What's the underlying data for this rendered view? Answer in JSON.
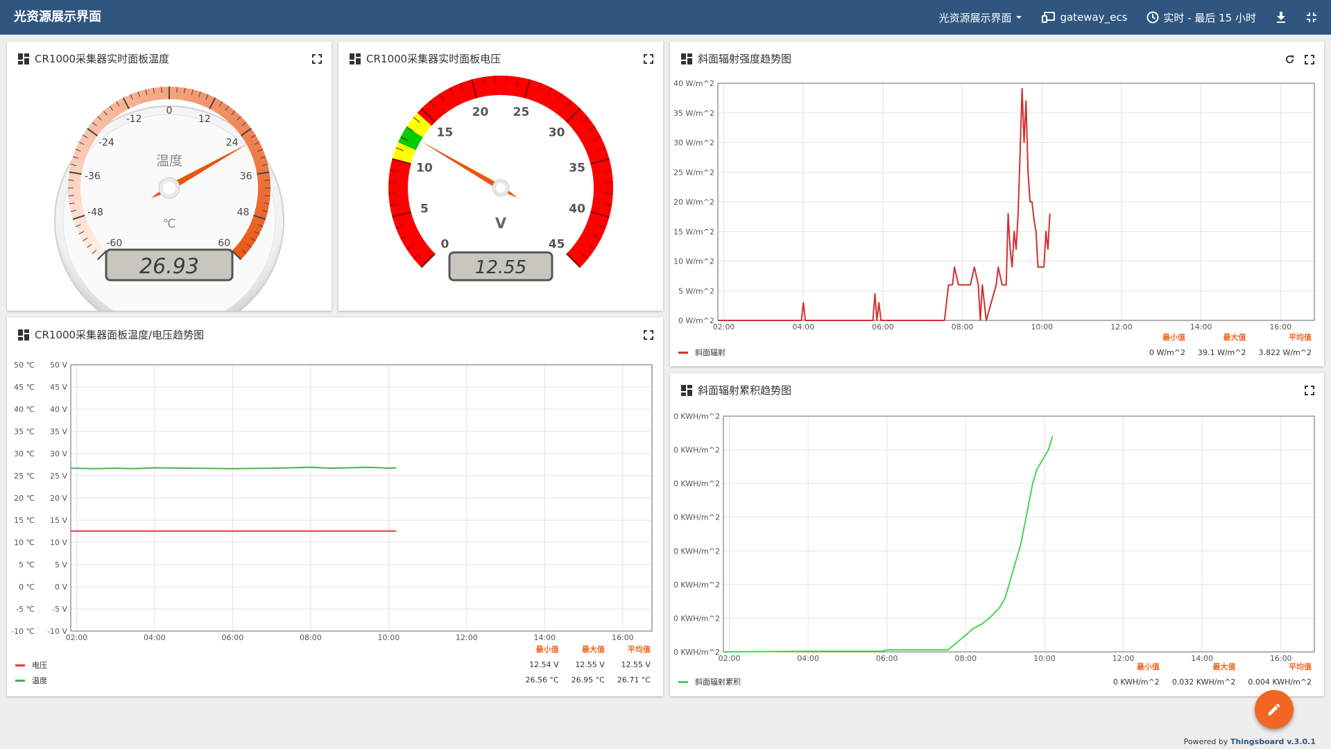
{
  "header": {
    "title": "光资源展示界面",
    "dashboard_select": "光资源展示界面",
    "entity": "gateway_ecs",
    "timewindow": "实时 - 最后 15 小时"
  },
  "colors": {
    "header_bg": "#305680",
    "accent": "#f26522",
    "voltage_series": "#e53935",
    "temp_series": "#4caf50",
    "irradiance_series": "#d32f2f",
    "cumulative_series": "#42d552"
  },
  "widgets": {
    "temp_gauge": {
      "title": "CR1000采集器实时面板温度",
      "label": "温度",
      "unit": "℃",
      "value_text": "26.93",
      "value": 26.93,
      "min": -60,
      "max": 60,
      "ticks": [
        -60,
        -48,
        -36,
        -24,
        -12,
        0,
        12,
        24,
        36,
        48,
        60
      ]
    },
    "volt_gauge": {
      "title": "CR1000采集器实时面板电压",
      "unit": "V",
      "value_text": "12.55",
      "value": 12.55,
      "min": 0,
      "max": 45,
      "ticks": [
        0,
        5,
        10,
        15,
        20,
        25,
        30,
        35,
        40,
        45
      ]
    },
    "temp_volt_chart": {
      "title": "CR1000采集器面板温度/电压趋势图",
      "legend": [
        {
          "name": "电压",
          "min": "12.54 V",
          "max": "12.55 V",
          "avg": "12.55 V"
        },
        {
          "name": "温度",
          "min": "26.56 °C",
          "max": "26.95 °C",
          "avg": "26.71 °C"
        }
      ],
      "stat_headers": [
        "最小值",
        "最大值",
        "平均值"
      ]
    },
    "irr_chart": {
      "title": "斜面辐射强度趋势图",
      "legend": [
        {
          "name": "斜面辐射",
          "min": "0 W/m^2",
          "max": "39.1 W/m^2",
          "avg": "3.822 W/m^2"
        }
      ],
      "stat_headers": [
        "最小值",
        "最大值",
        "平均值"
      ]
    },
    "cum_chart": {
      "title": "斜面辐射累积趋势图",
      "legend": [
        {
          "name": "斜面辐射累积",
          "min": "0 KWH/m^2",
          "max": "0.032 KWH/m^2",
          "avg": "0.004 KWH/m^2"
        }
      ],
      "stat_headers": [
        "最小值",
        "最大值",
        "平均值"
      ]
    }
  },
  "footer": {
    "powered_by": "Powered by ",
    "brand": "Thingsboard v.3.0.1"
  },
  "chart_data": [
    {
      "type": "line",
      "title": "CR1000采集器面板温度/电压趋势图",
      "x_ticks": [
        "02:00",
        "04:00",
        "06:00",
        "08:00",
        "10:00",
        "12:00",
        "14:00",
        "16:00"
      ],
      "xlim": [
        1.85,
        16.75
      ],
      "y_left": {
        "ticks": [
          "50 ℃",
          "45 ℃",
          "40 ℃",
          "35 ℃",
          "30 ℃",
          "25 ℃",
          "20 ℃",
          "15 ℃",
          "10 ℃",
          "5 ℃",
          "0 ℃",
          "-5 ℃",
          "-10 ℃"
        ],
        "ylim": [
          -10,
          50
        ]
      },
      "y_right": {
        "ticks": [
          "50 V",
          "45 V",
          "40 V",
          "35 V",
          "30 V",
          "25 V",
          "20 V",
          "15 V",
          "10 V",
          "5 V",
          "0 V",
          "-5 V",
          "-10 V"
        ],
        "ylim": [
          -10,
          50
        ]
      },
      "series": [
        {
          "name": "电压",
          "x": [
            1.85,
            3,
            4,
            5,
            6,
            7,
            8,
            9,
            10,
            10.2
          ],
          "y": [
            12.55,
            12.54,
            12.55,
            12.55,
            12.54,
            12.55,
            12.55,
            12.54,
            12.55,
            12.55
          ]
        },
        {
          "name": "温度",
          "x": [
            1.85,
            2.5,
            3,
            3.5,
            4,
            5,
            6,
            7,
            7.5,
            8,
            8.5,
            9,
            9.5,
            10,
            10.2
          ],
          "y": [
            26.7,
            26.6,
            26.7,
            26.6,
            26.8,
            26.7,
            26.6,
            26.7,
            26.8,
            26.9,
            26.7,
            26.8,
            26.9,
            26.7,
            26.8
          ]
        }
      ]
    },
    {
      "type": "line",
      "title": "斜面辐射强度趋势图",
      "x_ticks": [
        "02:00",
        "04:00",
        "06:00",
        "08:00",
        "10:00",
        "12:00",
        "14:00",
        "16:00"
      ],
      "xlim": [
        1.85,
        16.85
      ],
      "y_ticks": [
        "40 W/m^2",
        "35 W/m^2",
        "30 W/m^2",
        "25 W/m^2",
        "20 W/m^2",
        "15 W/m^2",
        "10 W/m^2",
        "5 W/m^2",
        "0 W/m^2"
      ],
      "ylim": [
        0,
        40
      ],
      "series": [
        {
          "name": "斜面辐射",
          "x": [
            1.85,
            3.95,
            4.0,
            4.05,
            5.75,
            5.8,
            5.85,
            5.9,
            5.95,
            6.0,
            7.55,
            7.65,
            7.75,
            7.8,
            7.9,
            8.0,
            8.2,
            8.3,
            8.4,
            8.45,
            8.5,
            8.55,
            8.6,
            8.85,
            8.9,
            9.0,
            9.05,
            9.1,
            9.15,
            9.2,
            9.25,
            9.3,
            9.35,
            9.4,
            9.45,
            9.5,
            9.55,
            9.6,
            9.65,
            9.7,
            9.75,
            9.8,
            9.85,
            9.9,
            9.95,
            10.0,
            10.05,
            10.1,
            10.15,
            10.2
          ],
          "y": [
            0,
            0,
            3,
            0,
            0,
            4.5,
            0,
            3,
            0,
            0,
            0,
            6,
            6,
            9,
            6,
            6,
            6,
            9,
            6,
            0,
            6,
            3,
            0,
            6,
            9,
            6,
            6,
            6,
            18,
            12,
            9,
            15,
            12,
            18,
            28,
            39.1,
            30,
            37,
            25,
            20,
            20,
            17,
            15,
            9,
            9,
            9,
            9,
            15,
            12,
            18
          ]
        }
      ]
    },
    {
      "type": "line",
      "title": "斜面辐射累积趋势图",
      "x_ticks": [
        "02:00",
        "04:00",
        "06:00",
        "08:00",
        "10:00",
        "12:00",
        "14:00",
        "16:00"
      ],
      "xlim": [
        1.85,
        16.85
      ],
      "y_ticks": [
        "0 KWH/m^2",
        "0 KWH/m^2",
        "0 KWH/m^2",
        "0 KWH/m^2",
        "0 KWH/m^2",
        "0 KWH/m^2",
        "0 KWH/m^2",
        "0 KWH/m^2"
      ],
      "ylim": [
        0,
        0.035
      ],
      "series": [
        {
          "name": "斜面辐射累积",
          "x": [
            1.85,
            4.0,
            5.9,
            6.0,
            7.55,
            7.8,
            8.0,
            8.2,
            8.4,
            8.6,
            8.85,
            9.0,
            9.2,
            9.4,
            9.5,
            9.6,
            9.7,
            9.8,
            9.9,
            10.0,
            10.1,
            10.2
          ],
          "y": [
            0,
            0.0001,
            0.0001,
            0.0003,
            0.0003,
            0.0015,
            0.0025,
            0.0035,
            0.0041,
            0.005,
            0.0065,
            0.008,
            0.012,
            0.016,
            0.019,
            0.022,
            0.025,
            0.027,
            0.028,
            0.029,
            0.03,
            0.032
          ]
        }
      ]
    }
  ]
}
